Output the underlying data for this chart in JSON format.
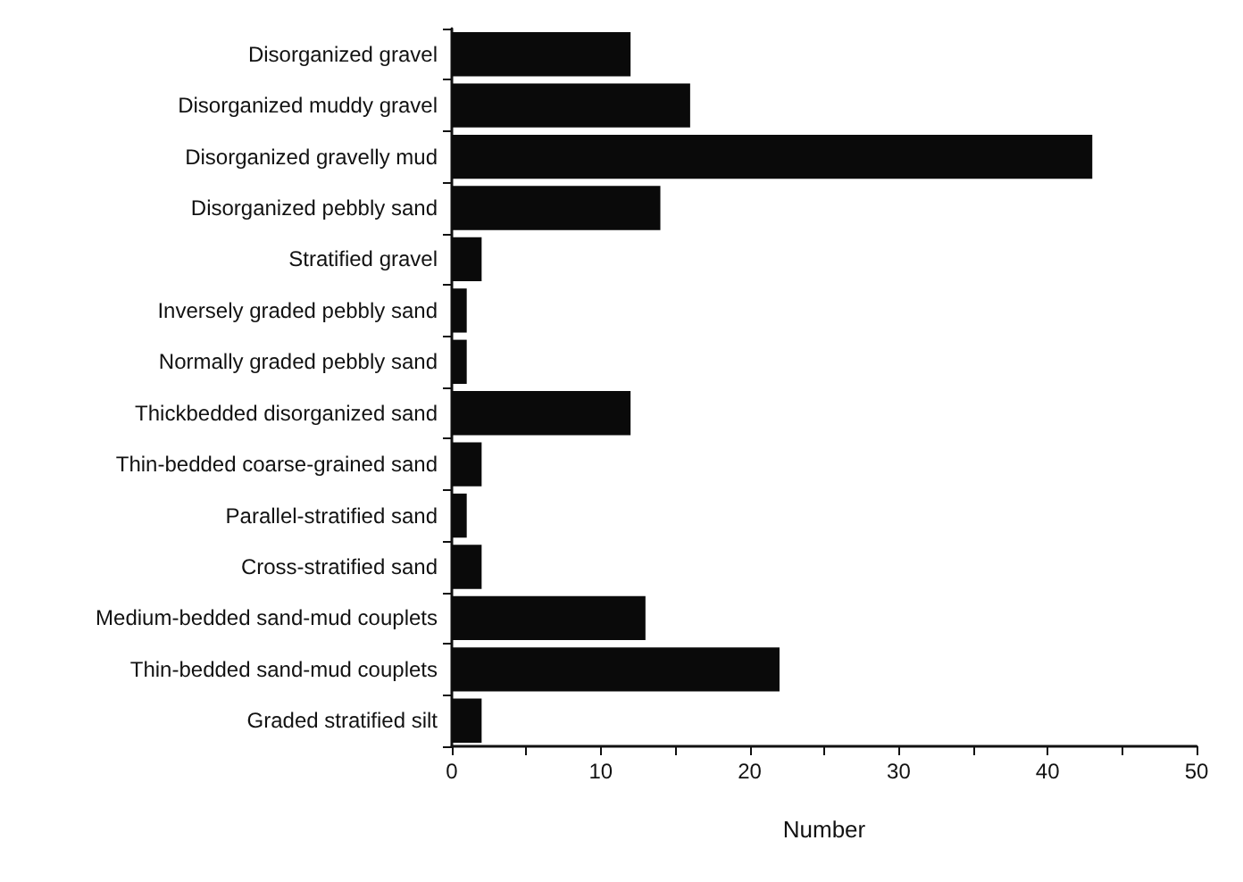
{
  "chart_data": {
    "type": "bar",
    "orientation": "horizontal",
    "xlabel": "Number",
    "categories": [
      "Disorganized gravel",
      "Disorganized muddy gravel",
      "Disorganized gravelly mud",
      "Disorganized pebbly sand",
      "Stratified gravel",
      "Inversely graded pebbly sand",
      "Normally graded pebbly sand",
      "Thickbedded disorganized sand",
      "Thin-bedded coarse-grained sand",
      "Parallel-stratified sand",
      "Cross-stratified sand",
      "Medium-bedded sand-mud couplets",
      "Thin-bedded sand-mud couplets",
      "Graded stratified silt"
    ],
    "values": [
      12,
      16,
      43,
      14,
      2,
      1,
      1,
      12,
      2,
      1,
      2,
      13,
      22,
      2
    ],
    "color": "#0a0a0a",
    "xlim": [
      0,
      50
    ],
    "xticks": [
      0,
      {
        "value": 5,
        "label": null
      },
      10,
      {
        "value": 15,
        "label": null
      },
      20,
      {
        "value": 25,
        "label": null
      },
      30,
      {
        "value": 35,
        "label": null
      },
      40,
      {
        "value": 45,
        "label": null
      },
      50
    ],
    "data_labels": false
  }
}
